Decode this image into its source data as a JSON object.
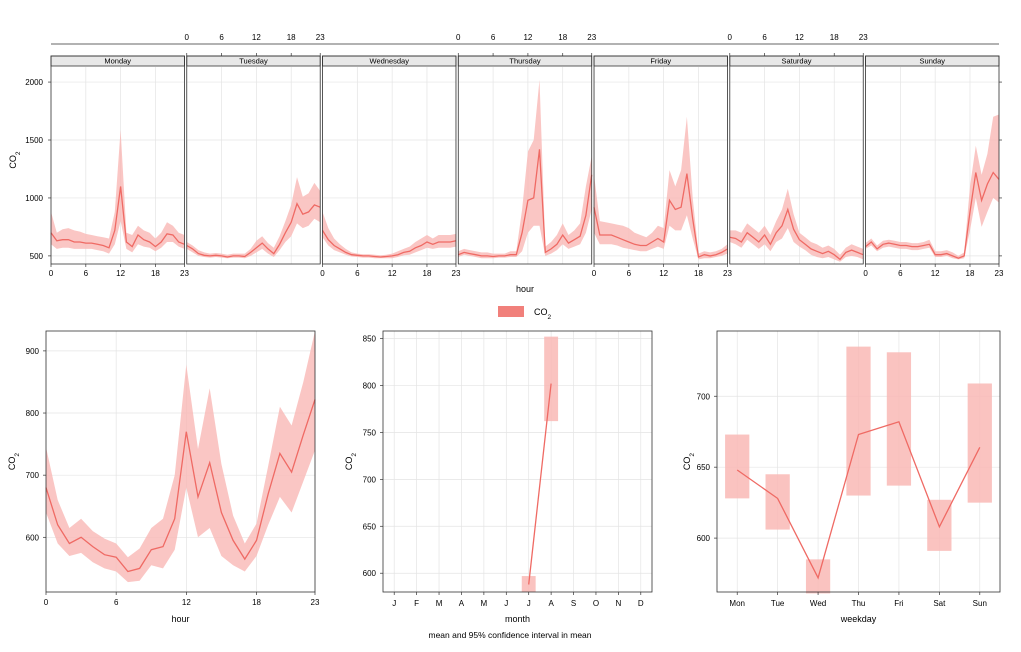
{
  "colors": {
    "line": "#ef6a64",
    "band": "#f9b8b5",
    "grid": "#e4e4e4",
    "strip": "#e8e8e8",
    "frame": "#333333"
  },
  "legend": {
    "label_base": "CO",
    "label_sub": "2"
  },
  "footer": "mean and 95% confidence interval in mean",
  "chart_data": [
    {
      "type": "line",
      "subtype": "mean-with-confidence-band",
      "panels": [
        "Monday",
        "Tuesday",
        "Wednesday",
        "Thursday",
        "Friday",
        "Saturday",
        "Sunday"
      ],
      "xlabel": "hour",
      "ylabel_base": "CO",
      "ylabel_sub": "2",
      "xlim": [
        0,
        23
      ],
      "ylim": [
        430,
        2130
      ],
      "yticks": [
        "500",
        "1000",
        "1500",
        "2000"
      ],
      "ytick_values": [
        500,
        1000,
        1500,
        2000
      ],
      "xticks": [
        "0",
        "6",
        "12",
        "18",
        "23"
      ],
      "xtick_values": [
        0,
        6,
        12,
        18,
        23
      ],
      "grid": true,
      "series": [
        {
          "panel": "Monday",
          "mean": [
            700,
            630,
            640,
            640,
            620,
            620,
            610,
            610,
            600,
            590,
            570,
            720,
            1100,
            620,
            580,
            680,
            640,
            620,
            580,
            620,
            690,
            680,
            620,
            600
          ],
          "lower": [
            600,
            560,
            570,
            570,
            560,
            560,
            560,
            560,
            550,
            540,
            520,
            600,
            800,
            560,
            530,
            600,
            580,
            570,
            540,
            570,
            620,
            620,
            580,
            560
          ],
          "upper": [
            880,
            700,
            730,
            740,
            720,
            710,
            690,
            680,
            670,
            660,
            650,
            880,
            1590,
            700,
            680,
            760,
            720,
            700,
            650,
            700,
            790,
            760,
            700,
            680
          ]
        },
        {
          "panel": "Tuesday",
          "mean": [
            590,
            560,
            520,
            505,
            500,
            505,
            500,
            490,
            500,
            500,
            495,
            530,
            570,
            610,
            560,
            520,
            600,
            700,
            790,
            950,
            860,
            880,
            940,
            920
          ],
          "lower": [
            560,
            530,
            500,
            490,
            485,
            490,
            485,
            480,
            485,
            485,
            480,
            500,
            530,
            560,
            520,
            490,
            550,
            620,
            670,
            780,
            740,
            760,
            820,
            790
          ],
          "upper": [
            620,
            590,
            550,
            530,
            520,
            525,
            520,
            510,
            520,
            520,
            520,
            560,
            630,
            670,
            610,
            570,
            670,
            800,
            940,
            1180,
            1010,
            1040,
            1130,
            1060
          ]
        },
        {
          "panel": "Wednesday",
          "mean": [
            720,
            640,
            590,
            560,
            530,
            510,
            505,
            500,
            500,
            495,
            490,
            495,
            500,
            510,
            530,
            540,
            570,
            590,
            620,
            600,
            620,
            620,
            620,
            630
          ],
          "lower": [
            660,
            590,
            550,
            530,
            510,
            495,
            490,
            485,
            485,
            480,
            480,
            480,
            480,
            490,
            505,
            510,
            530,
            550,
            570,
            560,
            570,
            570,
            570,
            580
          ],
          "upper": [
            880,
            740,
            650,
            600,
            560,
            530,
            520,
            515,
            515,
            510,
            505,
            510,
            520,
            540,
            560,
            580,
            620,
            650,
            680,
            650,
            680,
            680,
            680,
            690
          ]
        },
        {
          "panel": "Thursday",
          "mean": [
            510,
            530,
            520,
            510,
            500,
            500,
            495,
            500,
            500,
            510,
            510,
            700,
            980,
            1000,
            1420,
            530,
            560,
            600,
            680,
            610,
            640,
            670,
            850,
            1200
          ],
          "lower": [
            490,
            510,
            500,
            490,
            480,
            480,
            480,
            485,
            485,
            490,
            490,
            540,
            700,
            760,
            760,
            500,
            520,
            550,
            600,
            560,
            580,
            600,
            700,
            900
          ],
          "upper": [
            540,
            560,
            550,
            540,
            530,
            530,
            520,
            520,
            520,
            540,
            540,
            900,
            1400,
            1500,
            2020,
            580,
            620,
            680,
            780,
            680,
            720,
            780,
            1100,
            1360
          ]
        },
        {
          "panel": "Friday",
          "mean": [
            920,
            680,
            680,
            680,
            660,
            640,
            620,
            600,
            590,
            590,
            620,
            650,
            620,
            980,
            900,
            920,
            1210,
            820,
            490,
            510,
            500,
            510,
            530,
            560
          ],
          "lower": [
            700,
            600,
            600,
            600,
            590,
            570,
            560,
            550,
            540,
            540,
            560,
            580,
            560,
            760,
            720,
            720,
            850,
            650,
            470,
            480,
            480,
            490,
            500,
            520
          ],
          "upper": [
            1200,
            800,
            790,
            780,
            770,
            760,
            740,
            700,
            680,
            660,
            700,
            760,
            740,
            1240,
            1100,
            1240,
            1700,
            1000,
            520,
            540,
            530,
            540,
            560,
            600
          ]
        },
        {
          "panel": "Saturday",
          "mean": [
            660,
            650,
            620,
            700,
            660,
            620,
            680,
            600,
            700,
            760,
            900,
            730,
            640,
            600,
            560,
            540,
            520,
            540,
            510,
            470,
            530,
            550,
            530,
            510
          ],
          "lower": [
            620,
            600,
            570,
            640,
            600,
            560,
            600,
            540,
            620,
            650,
            740,
            620,
            580,
            550,
            510,
            490,
            480,
            490,
            470,
            450,
            490,
            500,
            490,
            470
          ],
          "upper": [
            720,
            720,
            700,
            780,
            740,
            700,
            760,
            680,
            800,
            900,
            1080,
            860,
            700,
            660,
            620,
            600,
            570,
            590,
            560,
            510,
            570,
            600,
            580,
            560
          ]
        },
        {
          "panel": "Sunday",
          "mean": [
            580,
            620,
            560,
            600,
            610,
            600,
            590,
            590,
            580,
            580,
            590,
            600,
            510,
            510,
            520,
            500,
            480,
            500,
            880,
            1220,
            980,
            1120,
            1220,
            1160
          ],
          "lower": [
            560,
            590,
            540,
            570,
            580,
            570,
            560,
            560,
            550,
            550,
            560,
            570,
            490,
            490,
            500,
            480,
            470,
            480,
            720,
            1000,
            750,
            880,
            1000,
            960
          ],
          "upper": [
            610,
            650,
            590,
            630,
            640,
            630,
            620,
            620,
            610,
            610,
            620,
            640,
            540,
            540,
            550,
            530,
            500,
            530,
            1100,
            1450,
            1200,
            1380,
            1700,
            1720
          ]
        }
      ]
    },
    {
      "type": "line",
      "subtype": "mean-with-confidence-band",
      "xlabel": "hour",
      "ylabel_base": "CO",
      "ylabel_sub": "2",
      "xlim": [
        0,
        23
      ],
      "ylim": [
        512,
        932
      ],
      "yticks": [
        "600",
        "700",
        "800",
        "900"
      ],
      "ytick_values": [
        600,
        700,
        800,
        900
      ],
      "xticks": [
        "0",
        "6",
        "12",
        "18",
        "23"
      ],
      "xtick_values": [
        0,
        6,
        12,
        18,
        23
      ],
      "grid": true,
      "x": [
        0,
        1,
        2,
        3,
        4,
        5,
        6,
        7,
        8,
        9,
        10,
        11,
        12,
        13,
        14,
        15,
        16,
        17,
        18,
        19,
        20,
        21,
        22,
        23
      ],
      "mean": [
        680,
        620,
        590,
        600,
        585,
        572,
        568,
        545,
        550,
        580,
        585,
        630,
        770,
        665,
        720,
        640,
        595,
        565,
        595,
        670,
        735,
        705,
        765,
        822
      ],
      "lower": [
        640,
        590,
        570,
        575,
        560,
        550,
        545,
        528,
        530,
        555,
        550,
        580,
        680,
        600,
        615,
        570,
        555,
        545,
        570,
        620,
        665,
        640,
        690,
        740
      ],
      "upper": [
        745,
        660,
        615,
        630,
        610,
        598,
        590,
        568,
        582,
        615,
        630,
        700,
        878,
        742,
        840,
        718,
        635,
        590,
        622,
        715,
        810,
        780,
        850,
        932
      ]
    },
    {
      "type": "line",
      "subtype": "mean-with-confidence-band",
      "xlabel": "month",
      "ylabel_base": "CO",
      "ylabel_sub": "2",
      "categories": [
        "J",
        "F",
        "M",
        "A",
        "M",
        "J",
        "J",
        "A",
        "S",
        "O",
        "N",
        "D"
      ],
      "ylim": [
        580,
        858
      ],
      "yticks": [
        "600",
        "650",
        "700",
        "750",
        "800",
        "850"
      ],
      "ytick_values": [
        600,
        650,
        700,
        750,
        800,
        850
      ],
      "grid": true,
      "points": [
        {
          "index": 6,
          "mean": 588,
          "lower": 580,
          "upper": 597
        },
        {
          "index": 7,
          "mean": 802,
          "lower": 762,
          "upper": 852
        }
      ]
    },
    {
      "type": "line",
      "subtype": "mean-with-confidence-band",
      "xlabel": "weekday",
      "ylabel_base": "CO",
      "ylabel_sub": "2",
      "categories": [
        "Mon",
        "Tue",
        "Wed",
        "Thu",
        "Fri",
        "Sat",
        "Sun"
      ],
      "ylim": [
        562,
        746
      ],
      "yticks": [
        "600",
        "650",
        "700"
      ],
      "ytick_values": [
        600,
        650,
        700
      ],
      "grid": true,
      "mean": [
        648,
        628,
        572,
        673,
        682,
        608,
        664
      ],
      "lower": [
        628,
        606,
        561,
        630,
        637,
        591,
        625
      ],
      "upper": [
        673,
        645,
        585,
        735,
        731,
        627,
        709
      ]
    }
  ]
}
